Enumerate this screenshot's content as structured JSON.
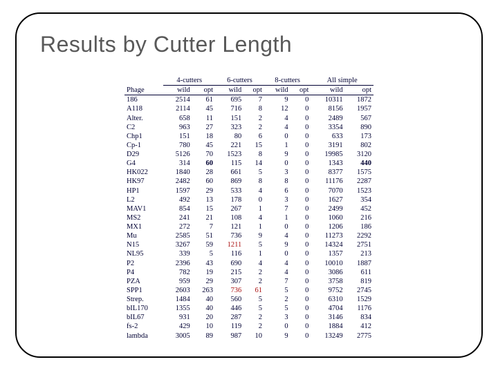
{
  "title": "Results by Cutter Length",
  "table": {
    "phage_header": "Phage",
    "groups": [
      "4-cutters",
      "6-cutters",
      "8-cutters",
      "All simple"
    ],
    "subheaders": [
      "wild",
      "opt"
    ],
    "highlight_color": "#aa1111",
    "text_color": "#000033",
    "rows": [
      {
        "name": "186",
        "cells": [
          "2514",
          "61",
          "695",
          "7",
          "9",
          "0",
          "10311",
          "1872"
        ]
      },
      {
        "name": "A118",
        "cells": [
          "2114",
          "45",
          "716",
          "8",
          "12",
          "0",
          "8156",
          "1957"
        ]
      },
      {
        "name": "Alter.",
        "cells": [
          "658",
          "11",
          "151",
          "2",
          "4",
          "0",
          "2489",
          "567"
        ]
      },
      {
        "name": "C2",
        "cells": [
          "963",
          "27",
          "323",
          "2",
          "4",
          "0",
          "3354",
          "890"
        ]
      },
      {
        "name": "Chp1",
        "cells": [
          "151",
          "18",
          "80",
          "6",
          "0",
          "0",
          "633",
          "173"
        ]
      },
      {
        "name": "Cp-1",
        "cells": [
          "780",
          "45",
          "221",
          "15",
          "1",
          "0",
          "3191",
          "802"
        ]
      },
      {
        "name": "D29",
        "cells": [
          "5126",
          "70",
          "1523",
          "8",
          "9",
          "0",
          "19985",
          "3120"
        ]
      },
      {
        "name": "G4",
        "cells": [
          "314",
          "60",
          "115",
          "14",
          "0",
          "0",
          "1343",
          "440"
        ],
        "bold_idx": [
          1,
          7
        ]
      },
      {
        "name": "HK022",
        "cells": [
          "1840",
          "28",
          "661",
          "5",
          "3",
          "0",
          "8377",
          "1575"
        ]
      },
      {
        "name": "HK97",
        "cells": [
          "2482",
          "60",
          "869",
          "8",
          "8",
          "0",
          "11176",
          "2287"
        ]
      },
      {
        "name": "HP1",
        "cells": [
          "1597",
          "29",
          "533",
          "4",
          "6",
          "0",
          "7070",
          "1523"
        ]
      },
      {
        "name": "L2",
        "cells": [
          "492",
          "13",
          "178",
          "0",
          "3",
          "0",
          "1627",
          "354"
        ]
      },
      {
        "name": "MAV1",
        "cells": [
          "854",
          "15",
          "267",
          "1",
          "7",
          "0",
          "2499",
          "452"
        ]
      },
      {
        "name": "MS2",
        "cells": [
          "241",
          "21",
          "108",
          "4",
          "1",
          "0",
          "1060",
          "216"
        ]
      },
      {
        "name": "MX1",
        "cells": [
          "272",
          "7",
          "121",
          "1",
          "0",
          "0",
          "1206",
          "186"
        ]
      },
      {
        "name": "Mu",
        "cells": [
          "2585",
          "51",
          "736",
          "9",
          "4",
          "0",
          "11273",
          "2292"
        ]
      },
      {
        "name": "N15",
        "cells": [
          "3267",
          "59",
          "1211",
          "5",
          "9",
          "0",
          "14324",
          "2751"
        ],
        "hl_idx": [
          2
        ]
      },
      {
        "name": "NL95",
        "cells": [
          "339",
          "5",
          "116",
          "1",
          "0",
          "0",
          "1357",
          "213"
        ]
      },
      {
        "name": "P2",
        "cells": [
          "2396",
          "43",
          "690",
          "4",
          "4",
          "0",
          "10010",
          "1887"
        ]
      },
      {
        "name": "P4",
        "cells": [
          "782",
          "19",
          "215",
          "2",
          "4",
          "0",
          "3086",
          "611"
        ]
      },
      {
        "name": "PZA",
        "cells": [
          "959",
          "29",
          "307",
          "2",
          "7",
          "0",
          "3758",
          "819"
        ]
      },
      {
        "name": "SPP1",
        "cells": [
          "2603",
          "263",
          "736",
          "61",
          "5",
          "0",
          "9752",
          "2745"
        ],
        "hl_idx": [
          2,
          3
        ]
      },
      {
        "name": "Strep.",
        "cells": [
          "1484",
          "40",
          "560",
          "5",
          "2",
          "0",
          "6310",
          "1529"
        ]
      },
      {
        "name": "bIL170",
        "cells": [
          "1355",
          "40",
          "446",
          "5",
          "5",
          "0",
          "4704",
          "1176"
        ]
      },
      {
        "name": "bIL67",
        "cells": [
          "931",
          "20",
          "287",
          "2",
          "3",
          "0",
          "3146",
          "834"
        ]
      },
      {
        "name": "fs-2",
        "cells": [
          "429",
          "10",
          "119",
          "2",
          "0",
          "0",
          "1884",
          "412"
        ]
      },
      {
        "name": "lambda",
        "cells": [
          "3005",
          "89",
          "987",
          "10",
          "9",
          "0",
          "13249",
          "2775"
        ]
      }
    ]
  }
}
